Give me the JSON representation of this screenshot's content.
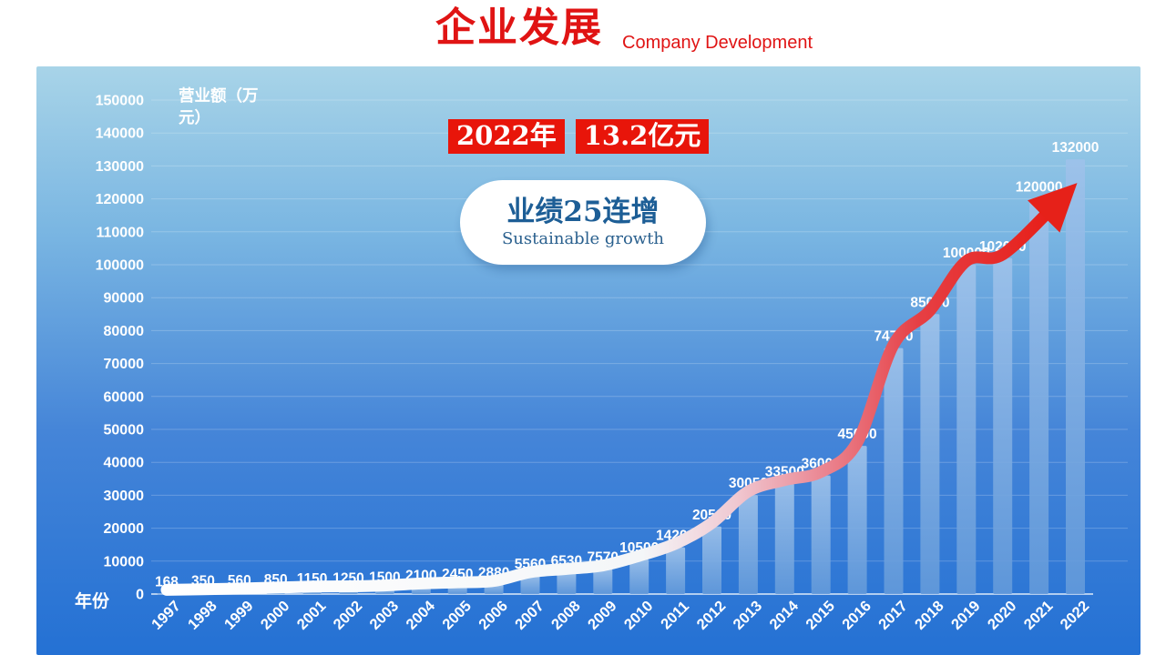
{
  "header": {
    "title": "企业发展",
    "subtitle": "Company Development",
    "accent_color": "#e01414"
  },
  "callout": {
    "year_label": "2022年",
    "value_label": "13.2亿元",
    "bg_color": "#e8150a",
    "text_color": "#ffffff"
  },
  "badge": {
    "line1": "业绩25连增",
    "line2": "Sustainable growth",
    "text_color": "#1d5e96",
    "bg_color": "#ffffff"
  },
  "chart_data": {
    "type": "bar",
    "title": "",
    "ylabel": "营业额（万元）",
    "ylabel_lines": [
      "营业额（万",
      "元）"
    ],
    "xlabel": "年份",
    "categories": [
      "1997",
      "1998",
      "1999",
      "2000",
      "2001",
      "2002",
      "2003",
      "2004",
      "2005",
      "2006",
      "2007",
      "2008",
      "2009",
      "2010",
      "2011",
      "2012",
      "2013",
      "2014",
      "2015",
      "2016",
      "2017",
      "2018",
      "2019",
      "2020",
      "2021",
      "2022"
    ],
    "values": [
      168,
      350,
      560,
      850,
      1150,
      1250,
      1500,
      2100,
      2450,
      2880,
      5560,
      6530,
      7570,
      10500,
      14200,
      20500,
      30050,
      33500,
      36000,
      45000,
      74700,
      85000,
      100000,
      102000,
      120000,
      132000
    ],
    "ylim": [
      0,
      150000
    ],
    "ytick_step": 10000,
    "grid": true,
    "legend": "none",
    "label_color": "#ffffff",
    "bar_color_top": "#9ec2ea",
    "bar_color_bottom": "#639ada",
    "grid_color": "rgba(255,255,255,0.22)",
    "axis_color": "rgba(255,255,255,0.85)",
    "panel_gradient": [
      "#a8d4e8",
      "#7ab6e2",
      "#4585d8",
      "#2471d4"
    ],
    "trend_arrow": {
      "description": "thick smoothed growth curve over bar tops, white at left fading to red, ending in large red arrowhead at top right",
      "gradient": [
        {
          "offset": 0,
          "color": "#ffffff"
        },
        {
          "offset": 0.52,
          "color": "#f4f6f8"
        },
        {
          "offset": 0.62,
          "color": "#f0c9d2"
        },
        {
          "offset": 0.72,
          "color": "#ea8490"
        },
        {
          "offset": 0.82,
          "color": "#e63f44"
        },
        {
          "offset": 1,
          "color": "#e7170e"
        }
      ],
      "head_color": "#e62119"
    }
  }
}
